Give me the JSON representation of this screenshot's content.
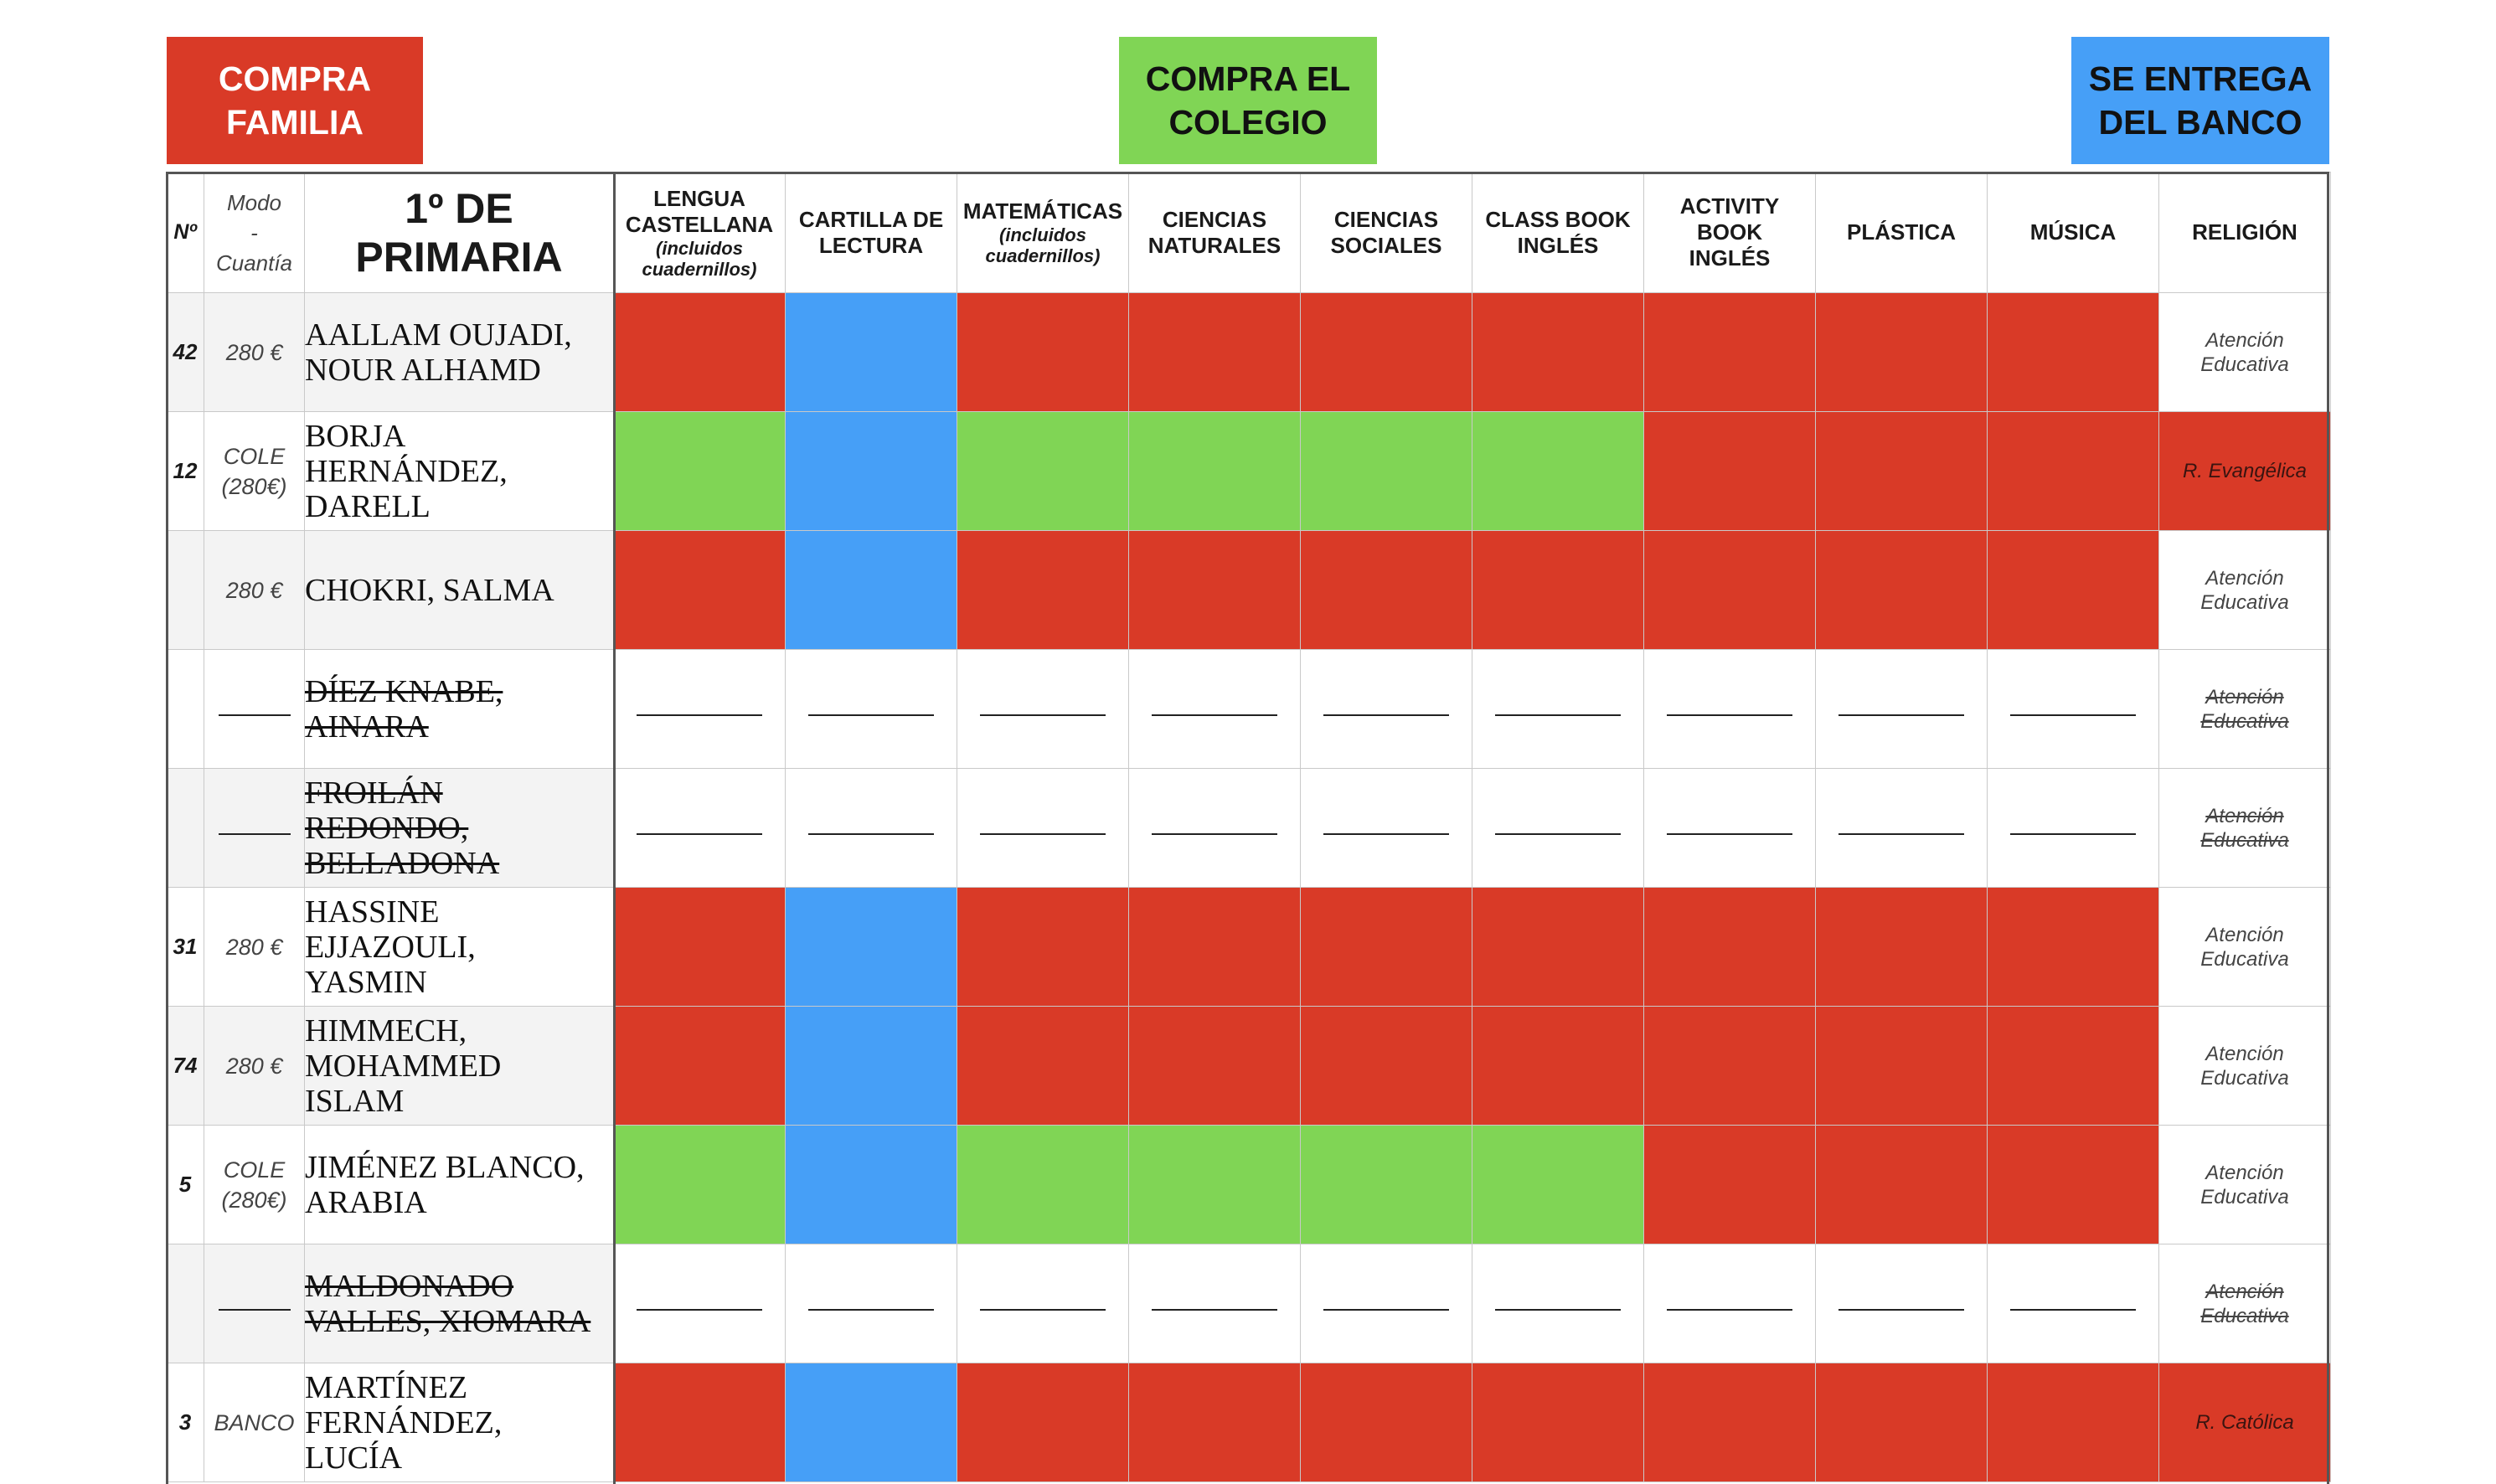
{
  "legend": {
    "family": {
      "label": "COMPRA\nFAMILIA",
      "color": "#d93a27"
    },
    "school": {
      "label": "COMPRA EL\nCOLEGIO",
      "color": "#80d555"
    },
    "bank": {
      "label": "SE ENTREGA\nDEL BANCO",
      "color": "#469ff7"
    }
  },
  "table": {
    "header": {
      "no": "Nº",
      "mode": "Modo\n-\nCuantía",
      "title": "1º DE\nPRIMARIA",
      "subjects": [
        {
          "label": "LENGUA\nCASTELLANA",
          "note": "(incluidos\ncuadernillos)"
        },
        {
          "label": "CARTILLA DE\nLECTURA",
          "note": ""
        },
        {
          "label": "MATEMÁTICAS",
          "note": "(incluidos\ncuadernillos)"
        },
        {
          "label": "CIENCIAS\nNATURALES",
          "note": ""
        },
        {
          "label": "CIENCIAS\nSOCIALES",
          "note": ""
        },
        {
          "label": "CLASS BOOK\nINGLÉS",
          "note": ""
        },
        {
          "label": "ACTIVITY\nBOOK\nINGLÉS",
          "note": ""
        },
        {
          "label": "PLÁSTICA",
          "note": ""
        },
        {
          "label": "MÚSICA",
          "note": ""
        }
      ],
      "religion": "RELIGIÓN"
    },
    "rows": [
      {
        "no": "42",
        "mode": "280 €",
        "name": "AALLAM OUJADI,\nNOUR ALHAMD",
        "withdrawn": false,
        "cells": [
          "red",
          "blue",
          "red",
          "red",
          "red",
          "red",
          "red",
          "red",
          "red"
        ],
        "religion": "Atención\nEducativa",
        "religion_cell": "white"
      },
      {
        "no": "12",
        "mode": "COLE\n(280€)",
        "name": "BORJA\nHERNÁNDEZ,\nDARELL",
        "withdrawn": false,
        "cells": [
          "green",
          "blue",
          "green",
          "green",
          "green",
          "green",
          "red",
          "red",
          "red"
        ],
        "religion": "R. Evangélica",
        "religion_cell": "red"
      },
      {
        "no": "",
        "mode": "280 €",
        "name": "CHOKRI, SALMA",
        "withdrawn": false,
        "cells": [
          "red",
          "blue",
          "red",
          "red",
          "red",
          "red",
          "red",
          "red",
          "red"
        ],
        "religion": "Atención\nEducativa",
        "religion_cell": "white"
      },
      {
        "no": "",
        "mode": "",
        "name": "DÍEZ KNABE,\nAINARA",
        "withdrawn": true,
        "cells": [
          "white",
          "white",
          "white",
          "white",
          "white",
          "white",
          "white",
          "white",
          "white"
        ],
        "religion": "Atención\nEducativa",
        "religion_cell": "white"
      },
      {
        "no": "",
        "mode": "",
        "name": "FROILÁN\nREDONDO,\nBELLADONA",
        "withdrawn": true,
        "cells": [
          "white",
          "white",
          "white",
          "white",
          "white",
          "white",
          "white",
          "white",
          "white"
        ],
        "religion": "Atención\nEducativa",
        "religion_cell": "white"
      },
      {
        "no": "31",
        "mode": "280 €",
        "name": "HASSINE\nEJJAZOULI,\nYASMIN",
        "withdrawn": false,
        "cells": [
          "red",
          "blue",
          "red",
          "red",
          "red",
          "red",
          "red",
          "red",
          "red"
        ],
        "religion": "Atención\nEducativa",
        "religion_cell": "white"
      },
      {
        "no": "74",
        "mode": "280 €",
        "name": "HIMMECH,\nMOHAMMED\nISLAM",
        "withdrawn": false,
        "cells": [
          "red",
          "blue",
          "red",
          "red",
          "red",
          "red",
          "red",
          "red",
          "red"
        ],
        "religion": "Atención\nEducativa",
        "religion_cell": "white"
      },
      {
        "no": "5",
        "mode": "COLE\n(280€)",
        "name": "JIMÉNEZ BLANCO,\nARABIA",
        "withdrawn": false,
        "cells": [
          "green",
          "blue",
          "green",
          "green",
          "green",
          "green",
          "red",
          "red",
          "red"
        ],
        "religion": "Atención\nEducativa",
        "religion_cell": "white"
      },
      {
        "no": "",
        "mode": "",
        "name": "MALDONADO\nVALLES, XIOMARA",
        "withdrawn": true,
        "cells": [
          "white",
          "white",
          "white",
          "white",
          "white",
          "white",
          "white",
          "white",
          "white"
        ],
        "religion": "Atención\nEducativa",
        "religion_cell": "white"
      },
      {
        "no": "3",
        "mode": "BANCO",
        "name": "MARTÍNEZ\nFERNÁNDEZ,\nLUCÍA",
        "withdrawn": false,
        "cells": [
          "red",
          "blue",
          "red",
          "red",
          "red",
          "red",
          "red",
          "red",
          "red"
        ],
        "religion": "R. Católica",
        "religion_cell": "red"
      }
    ]
  }
}
